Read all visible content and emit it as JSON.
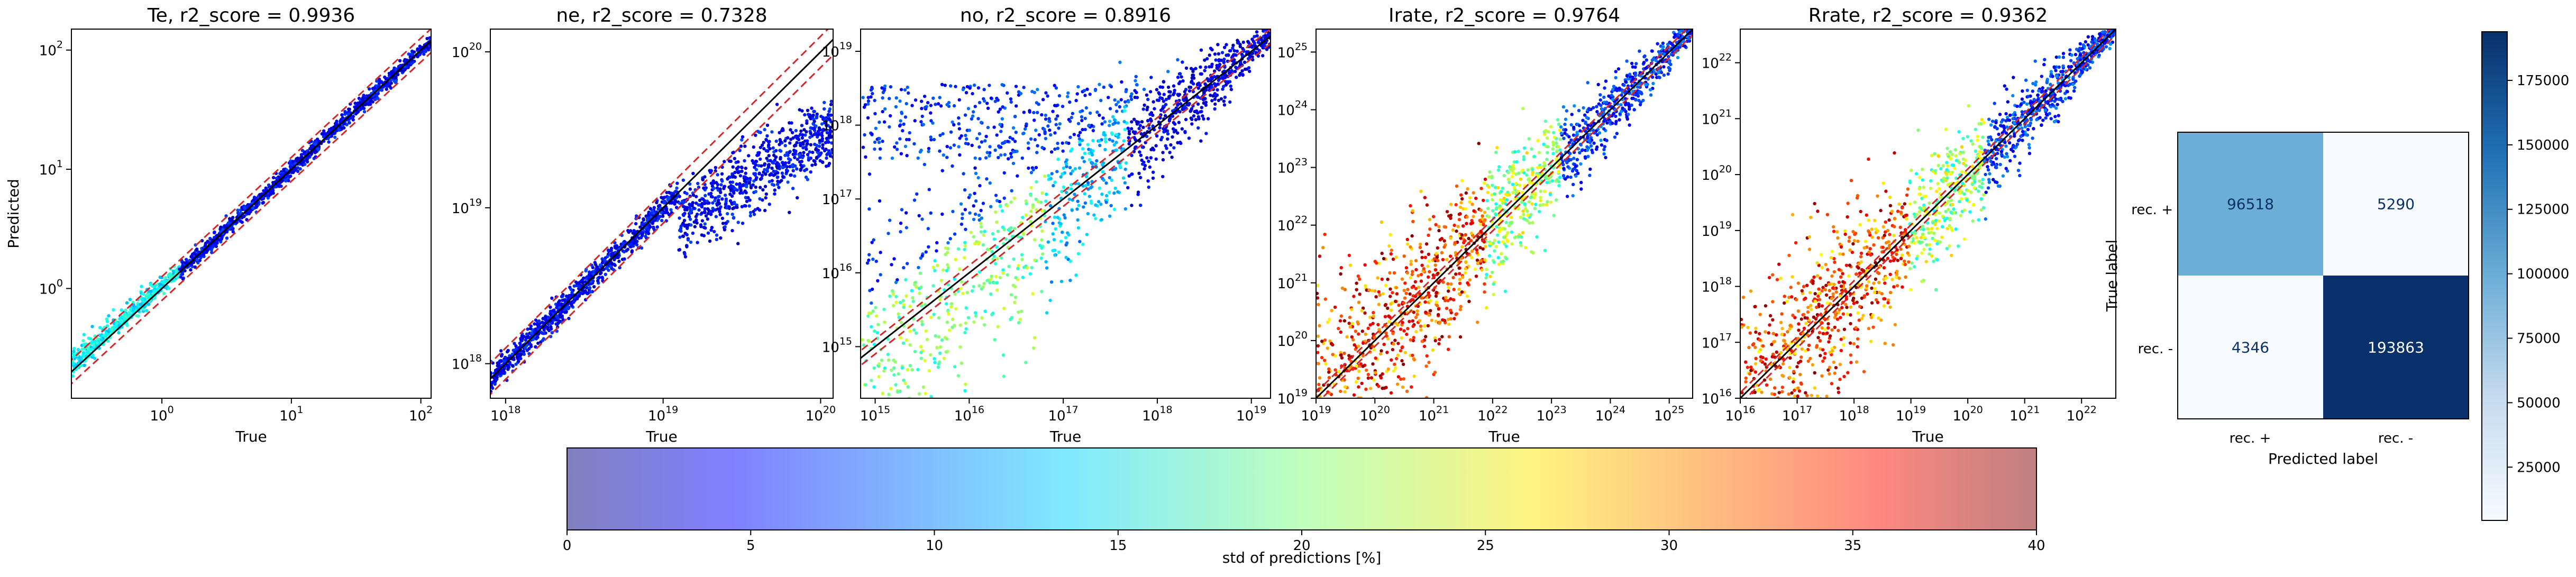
{
  "chart_data": [
    {
      "type": "scatter",
      "title": "Te, r2_score = 0.9936",
      "xlabel": "True",
      "ylabel": "Predicted",
      "xscale": "log",
      "yscale": "log",
      "xlim": [
        0.2,
        120
      ],
      "ylim": [
        0.12,
        150
      ],
      "xticks": [
        {
          "base": "10",
          "exp": "0"
        },
        {
          "base": "10",
          "exp": "1"
        },
        {
          "base": "10",
          "exp": "2"
        }
      ],
      "yticks": [
        {
          "base": "10",
          "exp": "0"
        },
        {
          "base": "10",
          "exp": "1"
        },
        {
          "base": "10",
          "exp": "2"
        }
      ],
      "fit_band": "tight",
      "high_error_region": "low"
    },
    {
      "type": "scatter",
      "title": "ne, r2_score = 0.7328",
      "xlabel": "True",
      "ylabel": "",
      "xscale": "log",
      "yscale": "log",
      "xlim": [
        8e+17,
        1.2e+20
      ],
      "ylim": [
        6e+17,
        1.4e+20
      ],
      "xticks": [
        {
          "base": "10",
          "exp": "18"
        },
        {
          "base": "10",
          "exp": "19"
        },
        {
          "base": "10",
          "exp": "20"
        }
      ],
      "yticks": [
        {
          "base": "10",
          "exp": "18"
        },
        {
          "base": "10",
          "exp": "19"
        },
        {
          "base": "10",
          "exp": "20"
        }
      ],
      "fit_band": "plateau",
      "high_error_region": "none"
    },
    {
      "type": "scatter",
      "title": "no, r2_score = 0.8916",
      "xlabel": "True",
      "ylabel": "",
      "xscale": "log",
      "yscale": "log",
      "xlim": [
        700000000000000.0,
        1.6e+19
      ],
      "ylim": [
        200000000000000.0,
        2e+19
      ],
      "xticks": [
        {
          "base": "10",
          "exp": "15"
        },
        {
          "base": "10",
          "exp": "16"
        },
        {
          "base": "10",
          "exp": "17"
        },
        {
          "base": "10",
          "exp": "18"
        },
        {
          "base": "10",
          "exp": "19"
        }
      ],
      "yticks": [
        {
          "base": "10",
          "exp": "15"
        },
        {
          "base": "10",
          "exp": "16"
        },
        {
          "base": "10",
          "exp": "17"
        },
        {
          "base": "10",
          "exp": "18"
        },
        {
          "base": "10",
          "exp": "19"
        }
      ],
      "fit_band": "wide-low",
      "high_error_region": "low"
    },
    {
      "type": "scatter",
      "title": "Irate, r2_score = 0.9764",
      "xlabel": "True",
      "ylabel": "",
      "xscale": "log",
      "yscale": "log",
      "xlim": [
        1e+19,
        2.5e+25
      ],
      "ylim": [
        1e+19,
        2.5e+25
      ],
      "xticks": [
        {
          "base": "10",
          "exp": "19"
        },
        {
          "base": "10",
          "exp": "20"
        },
        {
          "base": "10",
          "exp": "21"
        },
        {
          "base": "10",
          "exp": "22"
        },
        {
          "base": "10",
          "exp": "23"
        },
        {
          "base": "10",
          "exp": "24"
        },
        {
          "base": "10",
          "exp": "25"
        }
      ],
      "yticks": [
        {
          "base": "10",
          "exp": "19"
        },
        {
          "base": "10",
          "exp": "20"
        },
        {
          "base": "10",
          "exp": "21"
        },
        {
          "base": "10",
          "exp": "22"
        },
        {
          "base": "10",
          "exp": "23"
        },
        {
          "base": "10",
          "exp": "24"
        },
        {
          "base": "10",
          "exp": "25"
        }
      ],
      "fit_band": "wide-low",
      "high_error_region": "low"
    },
    {
      "type": "scatter",
      "title": "Rrate, r2_score = 0.9362",
      "xlabel": "True",
      "ylabel": "",
      "xscale": "log",
      "yscale": "log",
      "xlim": [
        1e+16,
        4e+22
      ],
      "ylim": [
        1e+16,
        4e+22
      ],
      "xticks": [
        {
          "base": "10",
          "exp": "16"
        },
        {
          "base": "10",
          "exp": "17"
        },
        {
          "base": "10",
          "exp": "18"
        },
        {
          "base": "10",
          "exp": "19"
        },
        {
          "base": "10",
          "exp": "20"
        },
        {
          "base": "10",
          "exp": "21"
        },
        {
          "base": "10",
          "exp": "22"
        }
      ],
      "yticks": [
        {
          "base": "10",
          "exp": "16"
        },
        {
          "base": "10",
          "exp": "17"
        },
        {
          "base": "10",
          "exp": "18"
        },
        {
          "base": "10",
          "exp": "19"
        },
        {
          "base": "10",
          "exp": "20"
        },
        {
          "base": "10",
          "exp": "21"
        },
        {
          "base": "10",
          "exp": "22"
        }
      ],
      "fit_band": "wide-low",
      "high_error_region": "low"
    },
    {
      "type": "heatmap",
      "title": "",
      "xlabel": "Predicted label",
      "ylabel": "True label",
      "xticklabels": [
        "rec. +",
        "rec. -"
      ],
      "yticklabels": [
        "rec. +",
        "rec. -"
      ],
      "values": [
        [
          96518,
          5290
        ],
        [
          4346,
          193863
        ]
      ],
      "colormap": "Blues",
      "colorbar_ticks": [
        "25000",
        "50000",
        "75000",
        "100000",
        "125000",
        "150000",
        "175000"
      ],
      "colorbar_range": [
        4346,
        193863
      ]
    }
  ],
  "colorbar": {
    "label": "std of predictions [%]",
    "ticks": [
      "0",
      "5",
      "10",
      "15",
      "20",
      "25",
      "30",
      "35",
      "40"
    ],
    "range": [
      0,
      40
    ],
    "colormap": "jet"
  },
  "colors": {
    "identity_line": "#000000",
    "band_line": "#d62728",
    "blues_low": "#f7fbff",
    "blues_high": "#08306b"
  }
}
